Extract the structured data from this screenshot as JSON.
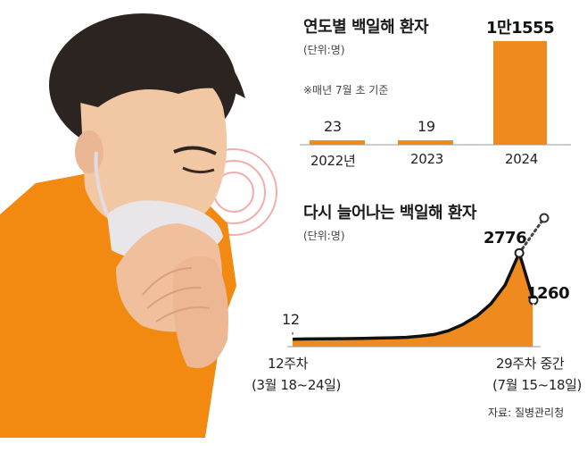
{
  "colors": {
    "accent": "#ef8a1f",
    "shirt": "#f28a12",
    "line": "#111111"
  },
  "chart_data": [
    {
      "type": "bar",
      "title": "연도별 백일해 환자",
      "unit": "(단위:명)",
      "note": "※매년 7월 초 기준",
      "categories": [
        "2022년",
        "2023",
        "2024"
      ],
      "values": [
        23,
        19,
        11555
      ],
      "value_labels": [
        "23",
        "19",
        "1만1555"
      ],
      "grid": false
    },
    {
      "type": "area",
      "title": "다시 늘어나는 백일해 환자",
      "unit": "(단위:명)",
      "x": [
        12,
        13,
        14,
        15,
        16,
        17,
        18,
        19,
        20,
        21,
        22,
        23,
        24,
        25,
        26,
        27,
        28,
        29
      ],
      "values": [
        12,
        18,
        22,
        25,
        28,
        35,
        45,
        55,
        70,
        110,
        160,
        280,
        480,
        750,
        1150,
        1750,
        2776,
        1260
      ],
      "projected_next": 3900,
      "annotations": [
        "12",
        "2776",
        "1260"
      ],
      "x_start_label": "12주차",
      "x_start_sub": "(3월 18~24일)",
      "x_end_label": "29주차 중간",
      "x_end_sub": "(7월 15~18일)",
      "grid": false
    }
  ],
  "source": "자료: 질병관리청"
}
